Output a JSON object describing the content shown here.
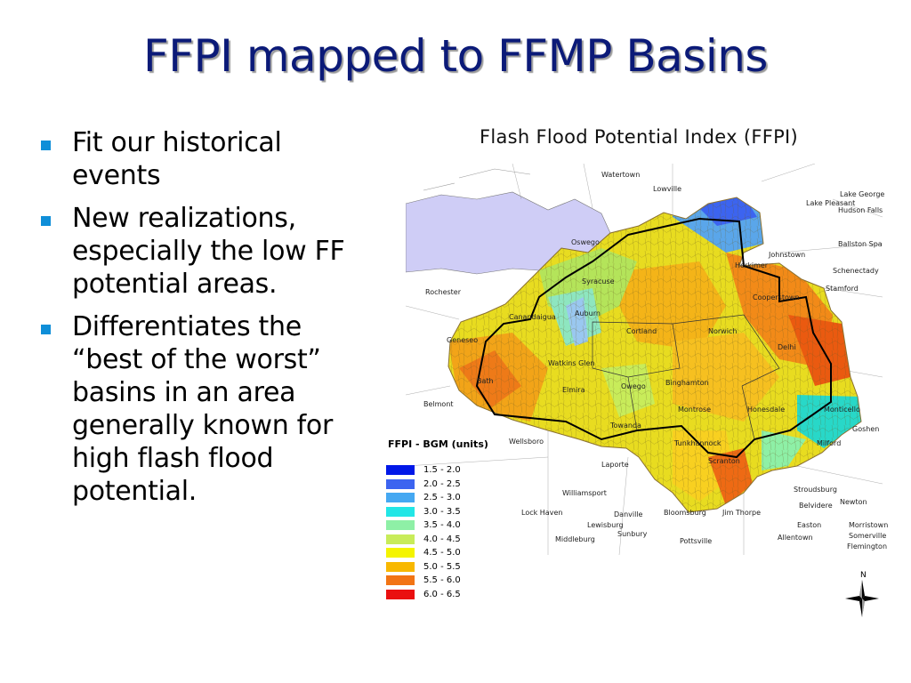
{
  "slide": {
    "title": "FFPI mapped to FFMP Basins",
    "bullets": [
      "Fit our historical events",
      "New realizations, especially the low FF potential areas.",
      "Differentiates the “best of the worst” basins in an area generally known for high flash flood potential."
    ]
  },
  "map": {
    "title": "Flash Flood Potential Index (FFPI)",
    "legend_title": "FFPI - BGM (units)",
    "legend": [
      {
        "label": "1.5 - 2.0",
        "color": "#0018e8"
      },
      {
        "label": "2.0 - 2.5",
        "color": "#3c64f0"
      },
      {
        "label": "2.5 - 3.0",
        "color": "#45a8f2"
      },
      {
        "label": "3.0 - 3.5",
        "color": "#22e6e6"
      },
      {
        "label": "3.5 - 4.0",
        "color": "#8ef0a6"
      },
      {
        "label": "4.0 - 4.5",
        "color": "#c8ec5a"
      },
      {
        "label": "4.5 - 5.0",
        "color": "#f4f400"
      },
      {
        "label": "5.0 - 5.5",
        "color": "#f8b800"
      },
      {
        "label": "5.5 - 6.0",
        "color": "#f27414"
      },
      {
        "label": "6.0 - 6.5",
        "color": "#ea1010"
      }
    ],
    "compass_label": "N",
    "places": [
      "Watertown",
      "Lowville",
      "Lake George",
      "Lake Pleasant",
      "Hudson Falls",
      "Oswego",
      "Ballston Spa",
      "Johnstown",
      "Herkimer",
      "Schenectady",
      "Rochester",
      "Syracuse",
      "Cooperstown",
      "Stamford",
      "Canandaigua",
      "Auburn",
      "Cortland",
      "Norwich",
      "Geneseo",
      "Watkins Glen",
      "Delhi",
      "Bath",
      "Elmira",
      "Binghamton",
      "Belmont",
      "Owego",
      "Montrose",
      "Honesdale",
      "Monticello",
      "Goshen",
      "Wellsboro",
      "Towanda",
      "Tunkhannock",
      "Milford",
      "Laporte",
      "Scranton",
      "Williamsport",
      "Stroudsburg",
      "Lock Haven",
      "Danville",
      "Bloomsburg",
      "Jim Thorpe",
      "Newton",
      "Belvidere",
      "Lewisburg",
      "Easton",
      "Morristown",
      "Sunbury",
      "Somerville",
      "Middleburg",
      "Pottsville",
      "Allentown",
      "Flemington"
    ]
  }
}
